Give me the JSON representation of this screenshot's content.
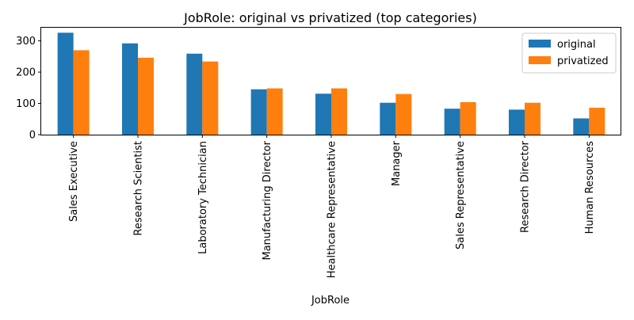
{
  "chart_data": {
    "type": "bar",
    "title": "JobRole: original vs privatized (top categories)",
    "xlabel": "JobRole",
    "ylabel": "",
    "ylim": [
      0,
      342
    ],
    "yticks": [
      0,
      100,
      200,
      300
    ],
    "grid": false,
    "legend_position": "top-right",
    "categories": [
      "Sales Executive",
      "Research Scientist",
      "Laboratory Technician",
      "Manufacturing Director",
      "Healthcare Representative",
      "Manager",
      "Sales Representative",
      "Research Director",
      "Human Resources"
    ],
    "series": [
      {
        "name": "original",
        "color": "#1f77b4",
        "values": [
          326,
          292,
          259,
          145,
          131,
          102,
          83,
          80,
          52
        ]
      },
      {
        "name": "privatized",
        "color": "#ff7f0e",
        "values": [
          270,
          246,
          234,
          148,
          148,
          130,
          104,
          102,
          86
        ]
      }
    ]
  }
}
